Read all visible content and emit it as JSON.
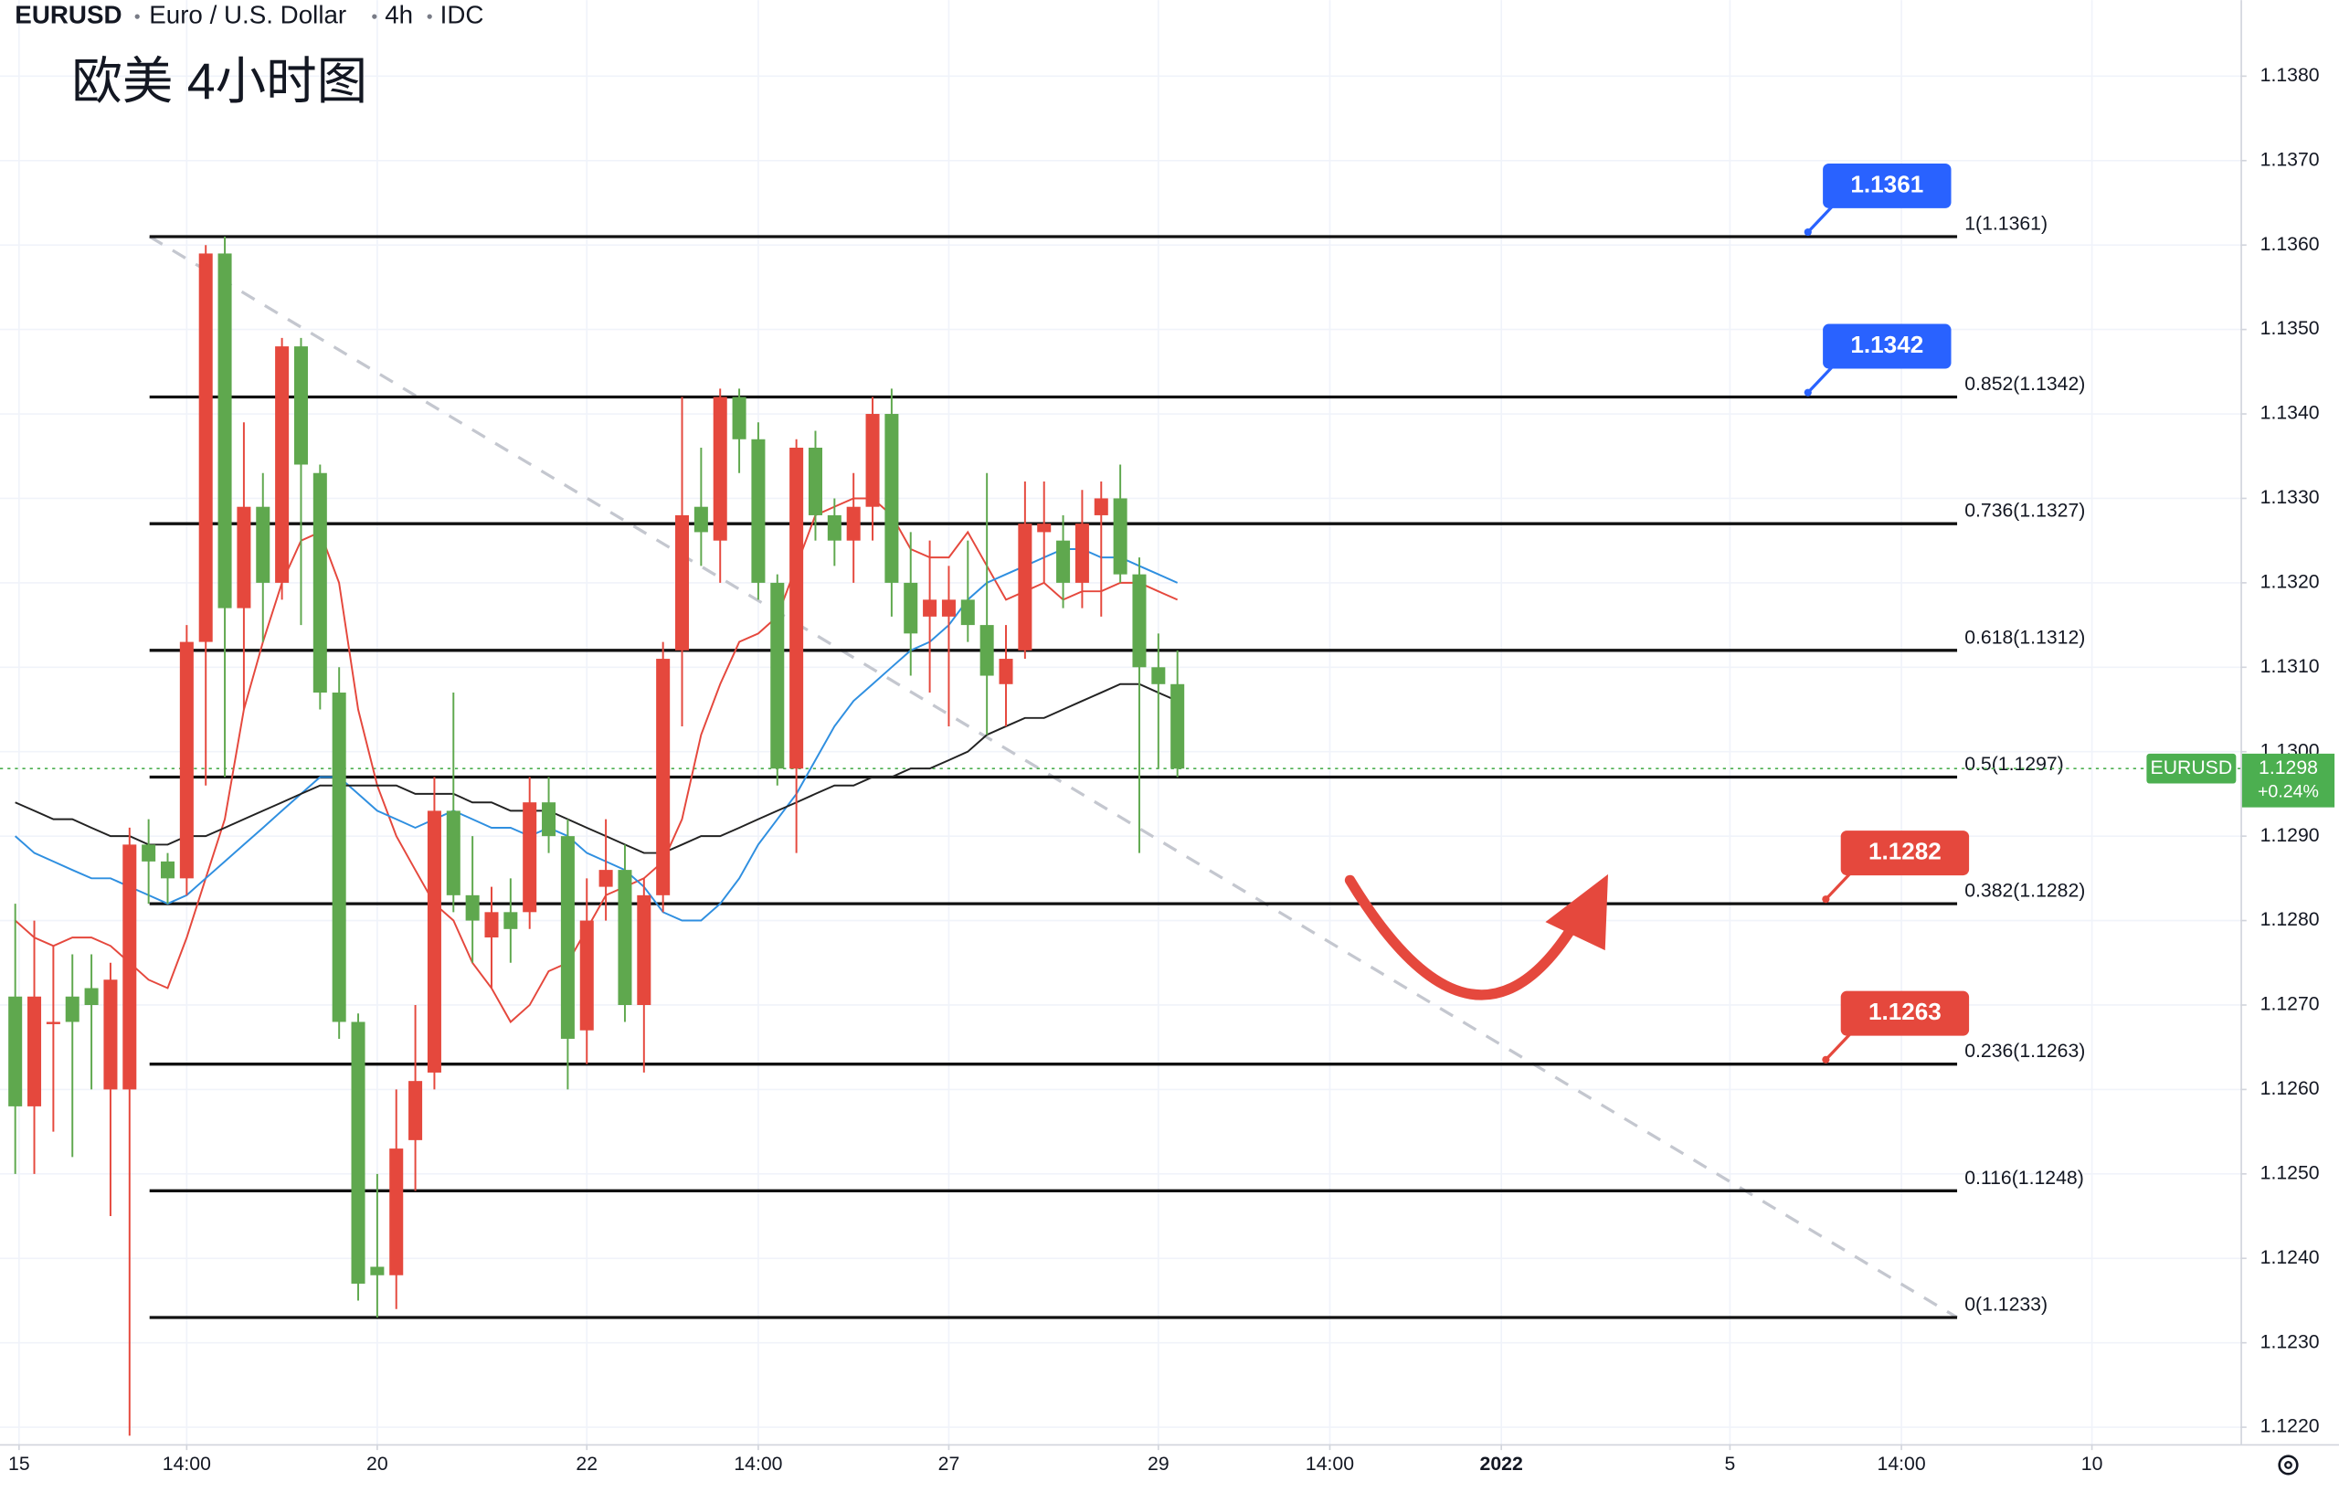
{
  "chart_data": {
    "type": "candlestick",
    "header": {
      "symbol": "EURUSD",
      "name": "Euro / U.S. Dollar",
      "interval": "4h",
      "source": "IDC"
    },
    "title": "欧美 4小时图",
    "up_color": "#e5483d",
    "down_color": "#5fa84e",
    "open": [
      1.1271,
      1.1258,
      1.1268,
      1.1271,
      1.1272,
      1.126,
      1.126,
      1.1289,
      1.1287,
      1.1285,
      1.1313,
      1.1359,
      1.1317,
      1.1329,
      1.132,
      1.1348,
      1.1333,
      1.1307,
      1.1268,
      1.1239,
      1.1238,
      1.1254,
      1.1262,
      1.1293,
      1.1283,
      1.1278,
      1.1281,
      1.1281,
      1.1294,
      1.129,
      1.1267,
      1.1284,
      1.1286,
      1.127,
      1.1283,
      1.1312,
      1.1329,
      1.1325,
      1.1342,
      1.1337,
      1.132,
      1.1298,
      1.1336,
      1.1328,
      1.1325,
      1.1329,
      1.134,
      1.132,
      1.1316,
      1.1316,
      1.1318,
      1.1315,
      1.1308,
      1.1312,
      1.1326,
      1.1325,
      1.132,
      1.1328,
      1.133,
      1.1321,
      1.131,
      1.1308
    ],
    "high": [
      1.1282,
      1.128,
      1.1277,
      1.1276,
      1.1276,
      1.1275,
      1.1291,
      1.1292,
      1.1288,
      1.1315,
      1.136,
      1.1361,
      1.1339,
      1.1333,
      1.1349,
      1.1349,
      1.1334,
      1.131,
      1.1269,
      1.125,
      1.126,
      1.127,
      1.1297,
      1.1307,
      1.129,
      1.1284,
      1.1285,
      1.1297,
      1.1297,
      1.1292,
      1.1285,
      1.1292,
      1.1289,
      1.1285,
      1.1313,
      1.1342,
      1.1336,
      1.1343,
      1.1343,
      1.1339,
      1.1321,
      1.1337,
      1.1338,
      1.133,
      1.1333,
      1.1342,
      1.1343,
      1.1326,
      1.1325,
      1.1322,
      1.1325,
      1.1333,
      1.1315,
      1.1332,
      1.1332,
      1.1328,
      1.1331,
      1.1332,
      1.1334,
      1.1323,
      1.1314,
      1.1312
    ],
    "low": [
      1.125,
      1.125,
      1.1255,
      1.1252,
      1.126,
      1.1245,
      1.1219,
      1.1282,
      1.1282,
      1.1283,
      1.1296,
      1.1297,
      1.1305,
      1.1313,
      1.1318,
      1.1315,
      1.1305,
      1.1266,
      1.1235,
      1.1233,
      1.1234,
      1.1248,
      1.126,
      1.1281,
      1.1275,
      1.1272,
      1.1275,
      1.1279,
      1.1288,
      1.126,
      1.1263,
      1.128,
      1.1268,
      1.1262,
      1.1281,
      1.1303,
      1.1322,
      1.132,
      1.1333,
      1.1318,
      1.1296,
      1.1288,
      1.1325,
      1.1322,
      1.132,
      1.1325,
      1.1316,
      1.1309,
      1.1307,
      1.1303,
      1.1313,
      1.1302,
      1.1303,
      1.1311,
      1.132,
      1.1317,
      1.1317,
      1.1316,
      1.132,
      1.1288,
      1.1298,
      1.1297
    ],
    "close": [
      1.1258,
      1.1271,
      1.1268,
      1.1268,
      1.127,
      1.1273,
      1.1289,
      1.1287,
      1.1285,
      1.1313,
      1.1359,
      1.1317,
      1.1329,
      1.132,
      1.1348,
      1.1334,
      1.1307,
      1.1268,
      1.1237,
      1.1238,
      1.1253,
      1.1261,
      1.1293,
      1.1283,
      1.128,
      1.1281,
      1.1279,
      1.1294,
      1.129,
      1.1266,
      1.128,
      1.1286,
      1.127,
      1.1283,
      1.1311,
      1.1328,
      1.1326,
      1.1342,
      1.1337,
      1.132,
      1.1298,
      1.1336,
      1.1328,
      1.1325,
      1.1329,
      1.134,
      1.132,
      1.1314,
      1.1318,
      1.1318,
      1.1315,
      1.1309,
      1.1311,
      1.1327,
      1.1327,
      1.132,
      1.1327,
      1.133,
      1.1321,
      1.131,
      1.1308,
      1.1298
    ],
    "moving_averages": [
      {
        "color": "#e5483d",
        "values": [
          1.128,
          1.1278,
          1.1277,
          1.1278,
          1.1278,
          1.1277,
          1.1275,
          1.1273,
          1.1272,
          1.1278,
          1.1285,
          1.1292,
          1.1305,
          1.1313,
          1.132,
          1.1325,
          1.1326,
          1.132,
          1.1305,
          1.1296,
          1.129,
          1.1286,
          1.1282,
          1.128,
          1.1275,
          1.1272,
          1.1268,
          1.127,
          1.1274,
          1.1275,
          1.1279,
          1.1283,
          1.1284,
          1.1285,
          1.1287,
          1.1292,
          1.1302,
          1.1308,
          1.1313,
          1.1314,
          1.1316,
          1.1322,
          1.1328,
          1.1329,
          1.133,
          1.133,
          1.1328,
          1.1324,
          1.1323,
          1.1323,
          1.1326,
          1.1322,
          1.1318,
          1.1319,
          1.132,
          1.1318,
          1.1319,
          1.1319,
          1.132,
          1.132,
          1.1319,
          1.1318
        ]
      },
      {
        "color": "#2f8fe0",
        "values": [
          1.129,
          1.1288,
          1.1287,
          1.1286,
          1.1285,
          1.1285,
          1.1284,
          1.1283,
          1.1282,
          1.1283,
          1.1285,
          1.1287,
          1.1289,
          1.1291,
          1.1293,
          1.1295,
          1.1297,
          1.1297,
          1.1295,
          1.1293,
          1.1292,
          1.1291,
          1.1292,
          1.1293,
          1.1292,
          1.1291,
          1.1291,
          1.129,
          1.1291,
          1.129,
          1.1288,
          1.1287,
          1.1286,
          1.1284,
          1.1281,
          1.128,
          1.128,
          1.1282,
          1.1285,
          1.1289,
          1.1292,
          1.1295,
          1.1299,
          1.1303,
          1.1306,
          1.1308,
          1.131,
          1.1312,
          1.1313,
          1.1315,
          1.1318,
          1.132,
          1.1321,
          1.1322,
          1.1323,
          1.1324,
          1.1324,
          1.1323,
          1.1323,
          1.1322,
          1.1321,
          1.132
        ]
      },
      {
        "color": "#222222",
        "values": [
          1.1294,
          1.1293,
          1.1292,
          1.1292,
          1.1291,
          1.129,
          1.129,
          1.1289,
          1.1289,
          1.129,
          1.129,
          1.1291,
          1.1292,
          1.1293,
          1.1294,
          1.1295,
          1.1296,
          1.1296,
          1.1296,
          1.1296,
          1.1296,
          1.1295,
          1.1295,
          1.1295,
          1.1294,
          1.1294,
          1.1293,
          1.1293,
          1.1293,
          1.1292,
          1.1291,
          1.129,
          1.1289,
          1.1288,
          1.1288,
          1.1289,
          1.129,
          1.129,
          1.1291,
          1.1292,
          1.1293,
          1.1294,
          1.1295,
          1.1296,
          1.1296,
          1.1297,
          1.1297,
          1.1298,
          1.1298,
          1.1299,
          1.13,
          1.1302,
          1.1303,
          1.1304,
          1.1304,
          1.1305,
          1.1306,
          1.1307,
          1.1308,
          1.1308,
          1.1307,
          1.1306
        ]
      }
    ],
    "fib_levels": [
      {
        "value": 1.1361,
        "label": "1(1.1361)"
      },
      {
        "value": 1.1342,
        "label": "0.852(1.1342)"
      },
      {
        "value": 1.1327,
        "label": "0.736(1.1327)"
      },
      {
        "value": 1.1312,
        "label": "0.618(1.1312)"
      },
      {
        "value": 1.1297,
        "label": "0.5(1.1297)"
      },
      {
        "value": 1.1282,
        "label": "0.382(1.1282)"
      },
      {
        "value": 1.1263,
        "label": "0.236(1.1263)"
      },
      {
        "value": 1.1248,
        "label": "0.116(1.1248)"
      },
      {
        "value": 1.1233,
        "label": "0(1.1233)"
      }
    ],
    "price_labels": [
      {
        "value": 1.1361,
        "color": "#2962ff"
      },
      {
        "value": 1.1342,
        "color": "#2962ff"
      },
      {
        "value": 1.1282,
        "color": "#e5483d"
      },
      {
        "value": 1.1263,
        "color": "#e5483d"
      }
    ],
    "last": {
      "symbol": "EURUSD",
      "value": 1.1298,
      "change": "+0.24%",
      "color": "#4caf50"
    },
    "xlim": [
      -0.8,
      116.8
    ],
    "xticks": [
      {
        "value": 0.2,
        "label": "15"
      },
      {
        "value": 9,
        "label": "14:00"
      },
      {
        "value": 19,
        "label": "20"
      },
      {
        "value": 30,
        "label": "22"
      },
      {
        "value": 39,
        "label": "14:00"
      },
      {
        "value": 49,
        "label": "27"
      },
      {
        "value": 60,
        "label": "29"
      },
      {
        "value": 69,
        "label": "14:00"
      },
      {
        "value": 78,
        "label": "2022"
      },
      {
        "value": 90,
        "label": "5"
      },
      {
        "value": 99,
        "label": "14:00"
      },
      {
        "value": 109,
        "label": "10"
      }
    ],
    "ylim": [
      1.1218,
      1.1389
    ],
    "yticks": [
      {
        "value": 1.122,
        "label": "1.1220"
      },
      {
        "value": 1.123,
        "label": "1.1230"
      },
      {
        "value": 1.124,
        "label": "1.1240"
      },
      {
        "value": 1.125,
        "label": "1.1250"
      },
      {
        "value": 1.126,
        "label": "1.1260"
      },
      {
        "value": 1.127,
        "label": "1.1270"
      },
      {
        "value": 1.128,
        "label": "1.1280"
      },
      {
        "value": 1.129,
        "label": "1.1290"
      },
      {
        "value": 1.13,
        "label": "1.1300"
      },
      {
        "value": 1.131,
        "label": "1.1310"
      },
      {
        "value": 1.132,
        "label": "1.1320"
      },
      {
        "value": 1.133,
        "label": "1.1330"
      },
      {
        "value": 1.134,
        "label": "1.1340"
      },
      {
        "value": 1.135,
        "label": "1.1350"
      },
      {
        "value": 1.136,
        "label": "1.1360"
      },
      {
        "value": 1.137,
        "label": "1.1370"
      },
      {
        "value": 1.138,
        "label": "1.1380"
      }
    ],
    "grid": true
  }
}
